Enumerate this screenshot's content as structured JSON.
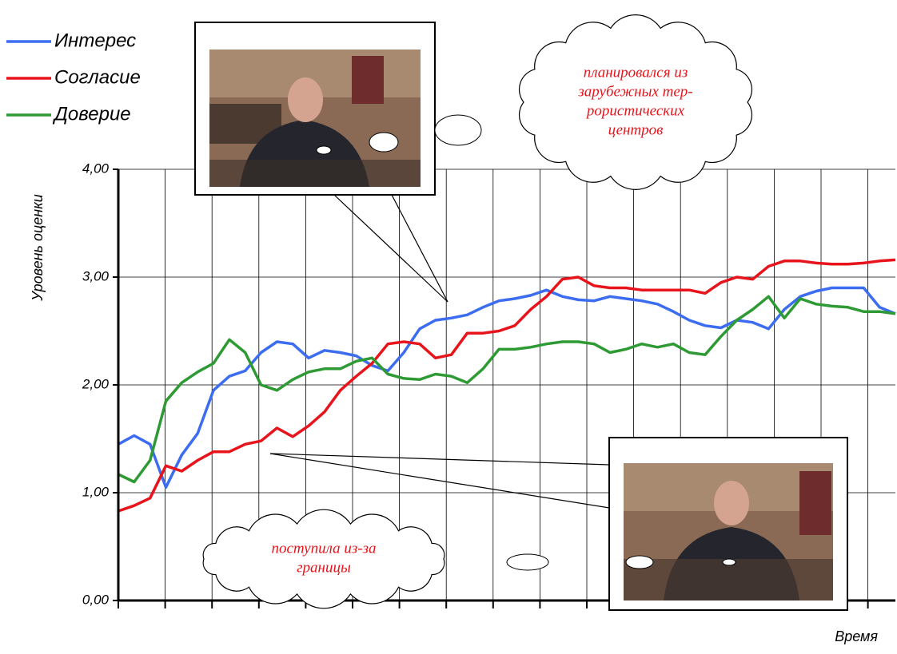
{
  "chart_data": {
    "type": "line",
    "y_label": "Уровень оценки",
    "x_label": "Время",
    "ylim": [
      0,
      4
    ],
    "yticks": [
      {
        "value": 0,
        "label": "0,00"
      },
      {
        "value": 1,
        "label": "1,00"
      },
      {
        "value": 2,
        "label": "2,00"
      },
      {
        "value": 3,
        "label": "3,00"
      },
      {
        "value": 4,
        "label": "4,00"
      }
    ],
    "grid": true,
    "legend": "top-left",
    "series": [
      {
        "name": "Интерес",
        "color": "#3c6cf0",
        "values": [
          1.45,
          1.53,
          1.45,
          1.05,
          1.35,
          1.55,
          1.95,
          2.08,
          2.13,
          2.3,
          2.4,
          2.38,
          2.25,
          2.32,
          2.3,
          2.27,
          2.18,
          2.13,
          2.3,
          2.52,
          2.6,
          2.62,
          2.65,
          2.72,
          2.78,
          2.8,
          2.83,
          2.88,
          2.82,
          2.79,
          2.78,
          2.82,
          2.8,
          2.78,
          2.75,
          2.68,
          2.6,
          2.55,
          2.53,
          2.6,
          2.58,
          2.52,
          2.7,
          2.82,
          2.87,
          2.9,
          2.9,
          2.9,
          2.72,
          2.66
        ]
      },
      {
        "name": "Согласие",
        "color": "#e8141c",
        "values": [
          0.83,
          0.88,
          0.95,
          1.25,
          1.2,
          1.3,
          1.38,
          1.38,
          1.45,
          1.48,
          1.6,
          1.52,
          1.62,
          1.75,
          1.95,
          2.08,
          2.2,
          2.38,
          2.4,
          2.38,
          2.25,
          2.28,
          2.48,
          2.48,
          2.5,
          2.55,
          2.7,
          2.82,
          2.98,
          3.0,
          2.92,
          2.9,
          2.9,
          2.88,
          2.88,
          2.88,
          2.88,
          2.85,
          2.95,
          3.0,
          2.98,
          3.1,
          3.15,
          3.15,
          3.13,
          3.12,
          3.12,
          3.13,
          3.15,
          3.16
        ]
      },
      {
        "name": "Доверие",
        "color": "#2e9a34",
        "values": [
          1.17,
          1.1,
          1.3,
          1.85,
          2.02,
          2.12,
          2.2,
          2.42,
          2.3,
          2.0,
          1.95,
          2.05,
          2.12,
          2.15,
          2.15,
          2.22,
          2.25,
          2.1,
          2.06,
          2.05,
          2.1,
          2.08,
          2.02,
          2.15,
          2.33,
          2.33,
          2.35,
          2.38,
          2.4,
          2.4,
          2.38,
          2.3,
          2.33,
          2.38,
          2.35,
          2.38,
          2.3,
          2.28,
          2.45,
          2.6,
          2.7,
          2.82,
          2.62,
          2.8,
          2.75,
          2.73,
          2.72,
          2.68,
          2.68,
          2.66
        ]
      }
    ],
    "annotations": [
      {
        "lines": [
          "планировался из",
          "зарубежных тер-",
          "рористических",
          "центров"
        ]
      },
      {
        "lines": [
          "поступила из-за",
          "границы"
        ]
      }
    ]
  }
}
